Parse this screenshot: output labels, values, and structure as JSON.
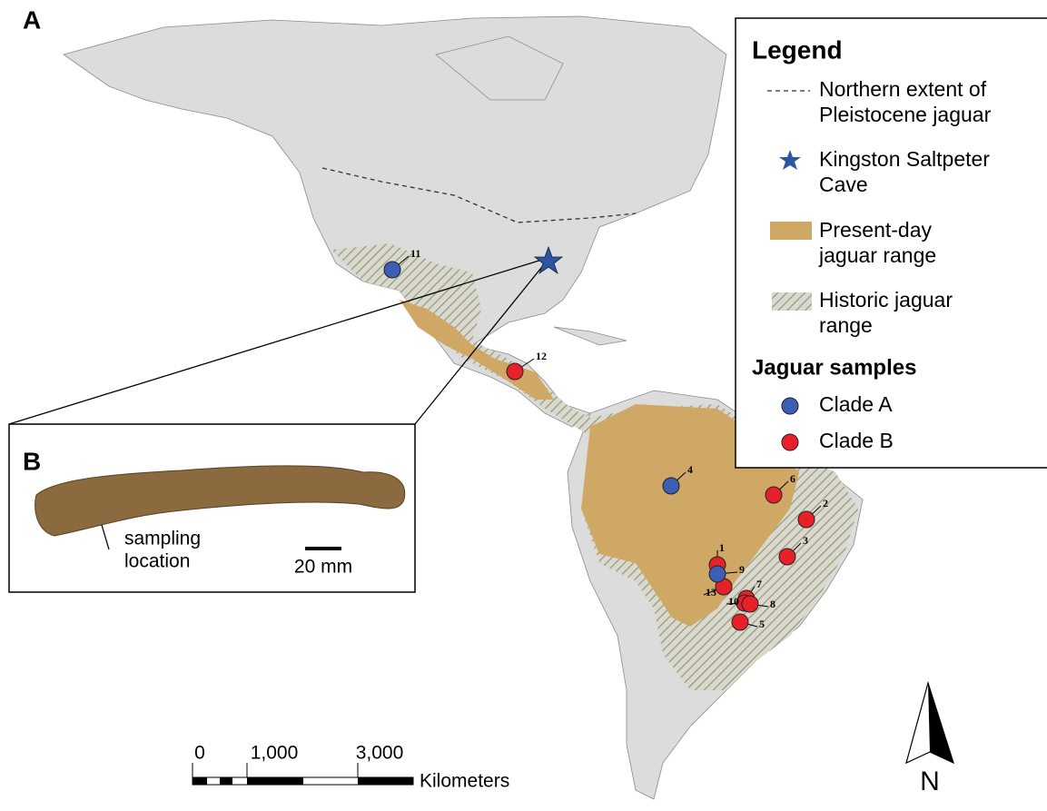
{
  "panel_labels": [
    "A",
    "B"
  ],
  "legend": {
    "title": "Legend",
    "items": [
      [
        "Northern extent of",
        "Pleistocene jaguar"
      ],
      [
        "Kingston Saltpeter",
        "Cave"
      ],
      [
        "Present-day",
        "jaguar range"
      ],
      [
        "Historic jaguar",
        "range"
      ]
    ],
    "samples_title": "Jaguar samples",
    "clades": [
      {
        "name": "Clade A",
        "color": "#3a5fb5",
        "samples": [
          "11",
          "4",
          "9"
        ]
      },
      {
        "name": "Clade B",
        "color": "#e8202a",
        "samples": [
          "12",
          "6",
          "2",
          "3",
          "1",
          "13",
          "7",
          "10",
          "8",
          "5"
        ]
      }
    ]
  },
  "inset": {
    "annotation": [
      "sampling",
      "location"
    ],
    "scale": "20 mm"
  },
  "scale_bar": {
    "ticks": [
      "0",
      "1,000",
      "3,000"
    ],
    "unit": "Kilometers"
  },
  "north": "N"
}
